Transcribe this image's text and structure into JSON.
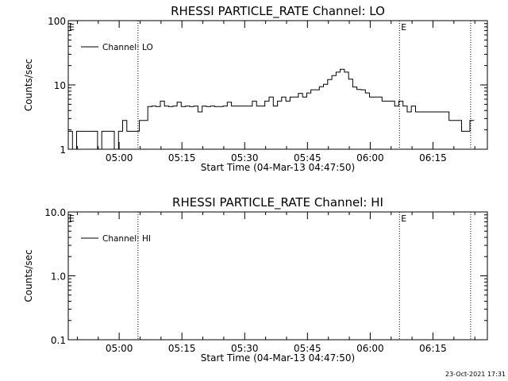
{
  "footer": {
    "timestamp": "23-Oct-2021 17:31"
  },
  "chart_data": [
    {
      "type": "line",
      "title": "RHESSI PARTICLE_RATE Channel: LO",
      "xlabel": "Start Time (04-Mar-13 04:47:50)",
      "ylabel": "Counts/sec",
      "yscale": "log",
      "xlim": [
        "04:47:50",
        "06:28:00"
      ],
      "ylim": [
        1,
        100
      ],
      "xticks": [
        "05:00",
        "05:15",
        "05:30",
        "05:45",
        "06:00",
        "06:15"
      ],
      "yticks": [
        "1",
        "10",
        "100"
      ],
      "legend": {
        "location": "top-left",
        "entries": [
          "Channel: LO"
        ]
      },
      "events": [
        {
          "label": "",
          "time": "05:04:30"
        },
        {
          "label": "E",
          "time": "06:07:00"
        },
        {
          "label": "",
          "time": "06:24:00"
        }
      ],
      "edge_markers": {
        "left": "E",
        "right": ""
      },
      "series": [
        {
          "name": "Channel: LO",
          "x": [
            "04:47:50",
            "04:48:50",
            "04:49:50",
            "04:50:50",
            "04:51:50",
            "04:52:50",
            "04:53:50",
            "04:54:50",
            "04:55:50",
            "04:56:50",
            "04:57:50",
            "04:58:50",
            "04:59:50",
            "05:00:50",
            "05:01:50",
            "05:02:50",
            "05:03:50",
            "05:04:50",
            "05:05:50",
            "05:06:50",
            "05:07:50",
            "05:08:50",
            "05:09:50",
            "05:10:50",
            "05:11:50",
            "05:12:50",
            "05:13:50",
            "05:14:50",
            "05:15:50",
            "05:16:50",
            "05:17:50",
            "05:18:50",
            "05:19:50",
            "05:20:50",
            "05:21:50",
            "05:22:50",
            "05:23:50",
            "05:24:50",
            "05:25:50",
            "05:26:50",
            "05:27:50",
            "05:28:50",
            "05:29:50",
            "05:30:50",
            "05:31:50",
            "05:32:50",
            "05:33:50",
            "05:34:50",
            "05:35:50",
            "05:36:50",
            "05:37:50",
            "05:38:50",
            "05:39:50",
            "05:40:50",
            "05:41:50",
            "05:42:50",
            "05:43:50",
            "05:44:50",
            "05:45:50",
            "05:46:50",
            "05:47:50",
            "05:48:50",
            "05:49:50",
            "05:50:50",
            "05:51:50",
            "05:52:50",
            "05:53:50",
            "05:54:50",
            "05:55:50",
            "05:56:50",
            "05:57:50",
            "05:58:50",
            "05:59:50",
            "06:00:50",
            "06:01:50",
            "06:02:50",
            "06:03:50",
            "06:04:50",
            "06:05:50",
            "06:06:50",
            "06:07:50",
            "06:08:50",
            "06:09:50",
            "06:10:50",
            "06:11:50",
            "06:12:50",
            "06:13:50",
            "06:14:50",
            "06:15:50",
            "06:16:50",
            "06:17:50",
            "06:18:50",
            "06:19:50",
            "06:20:50",
            "06:21:50",
            "06:22:50",
            "06:23:50"
          ],
          "y": [
            1.9,
            1,
            1.9,
            1.9,
            1.9,
            1.9,
            1.9,
            1,
            1.9,
            1.9,
            1.9,
            1,
            1.9,
            2.8,
            1.9,
            1.9,
            1.9,
            2.8,
            2.8,
            4.6,
            4.7,
            4.6,
            5.6,
            4.7,
            4.6,
            4.7,
            5.4,
            4.6,
            4.7,
            4.6,
            4.7,
            3.8,
            4.7,
            4.6,
            4.7,
            4.6,
            4.6,
            4.7,
            5.4,
            4.7,
            4.7,
            4.7,
            4.7,
            4.7,
            5.6,
            4.7,
            4.7,
            5.6,
            6.5,
            4.7,
            5.6,
            6.5,
            5.6,
            6.5,
            6.5,
            7.4,
            6.5,
            7.5,
            8.4,
            8.4,
            9.4,
            10.2,
            12.1,
            14,
            15.8,
            17.5,
            15.8,
            12.3,
            9.3,
            8.5,
            8.4,
            7.5,
            6.5,
            6.5,
            6.5,
            5.6,
            5.6,
            5.6,
            4.7,
            5.6,
            4.7,
            3.8,
            4.7,
            3.8,
            3.8,
            3.8,
            3.8,
            3.8,
            3.8,
            3.8,
            3.8,
            2.8,
            2.8,
            2.8,
            1.9,
            1.9,
            2.8
          ]
        }
      ]
    },
    {
      "type": "line",
      "title": "RHESSI PARTICLE_RATE Channel: HI",
      "xlabel": "Start Time (04-Mar-13 04:47:50)",
      "ylabel": "Counts/sec",
      "yscale": "log",
      "xlim": [
        "04:47:50",
        "06:28:00"
      ],
      "ylim": [
        0.1,
        10
      ],
      "xticks": [
        "05:00",
        "05:15",
        "05:30",
        "05:45",
        "06:00",
        "06:15"
      ],
      "yticks": [
        "0.1",
        "1.0",
        "10.0"
      ],
      "legend": {
        "location": "top-left",
        "entries": [
          "Channel: HI"
        ]
      },
      "events": [
        {
          "label": "",
          "time": "05:04:30"
        },
        {
          "label": "E",
          "time": "06:07:00"
        },
        {
          "label": "",
          "time": "06:24:00"
        }
      ],
      "edge_markers": {
        "left": "E",
        "right": ""
      },
      "series": [
        {
          "name": "Channel: HI",
          "x": [],
          "y": []
        }
      ]
    }
  ]
}
